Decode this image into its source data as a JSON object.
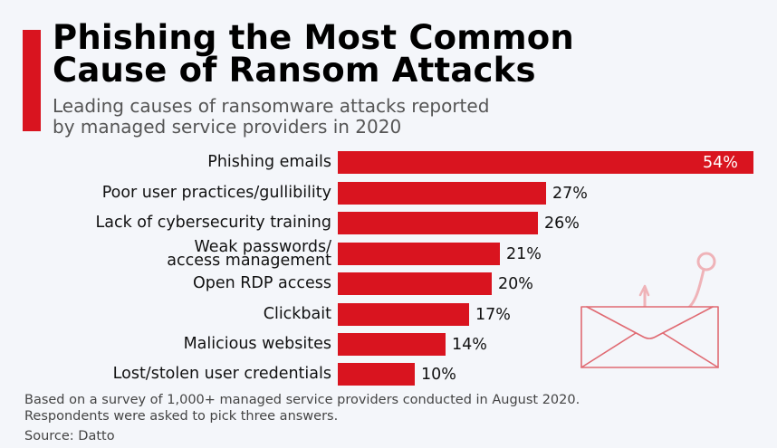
{
  "header": {
    "title_line1": "Phishing the Most Common",
    "title_line2": "Cause of Ransom Attacks",
    "subtitle_line1": "Leading causes of ransomware attacks reported",
    "subtitle_line2": "by managed service providers in 2020"
  },
  "colors": {
    "accent": "#d9141f",
    "background": "#f4f6fa",
    "illustration": "#e06a72"
  },
  "chart_data": {
    "type": "bar",
    "orientation": "horizontal",
    "title": "Phishing the Most Common Cause of Ransom Attacks",
    "subtitle": "Leading causes of ransomware attacks reported by managed service providers in 2020",
    "categories": [
      "Phishing emails",
      "Poor user practices/gullibility",
      "Lack of cybersecurity training",
      "Weak passwords/ access management",
      "Open RDP access",
      "Clickbait",
      "Malicious websites",
      "Lost/stolen user credentials"
    ],
    "values": [
      54,
      27,
      26,
      21,
      20,
      17,
      14,
      10
    ],
    "value_labels": [
      "54%",
      "27%",
      "26%",
      "21%",
      "20%",
      "17%",
      "14%",
      "10%"
    ],
    "unit": "%",
    "xlabel": "",
    "ylabel": "",
    "xlim": [
      0,
      54
    ],
    "grid": false,
    "legend": "none"
  },
  "rows": [
    {
      "label_line1": "Phishing emails",
      "label_line2": "",
      "value": "54%"
    },
    {
      "label_line1": "Poor user practices/gullibility",
      "label_line2": "",
      "value": "27%"
    },
    {
      "label_line1": "Lack of cybersecurity training",
      "label_line2": "",
      "value": "26%"
    },
    {
      "label_line1": "Weak passwords/",
      "label_line2": "access management",
      "value": "21%"
    },
    {
      "label_line1": "Open RDP access",
      "label_line2": "",
      "value": "20%"
    },
    {
      "label_line1": "Clickbait",
      "label_line2": "",
      "value": "17%"
    },
    {
      "label_line1": "Malicious websites",
      "label_line2": "",
      "value": "14%"
    },
    {
      "label_line1": "Lost/stolen user credentials",
      "label_line2": "",
      "value": "10%"
    }
  ],
  "footer": {
    "note_line1": "Based on a survey of 1,000+ managed service providers conducted in August 2020.",
    "note_line2": "Respondents were asked to pick three answers.",
    "source": "Source: Datto"
  },
  "illustration": {
    "icon": "phishing-hook-envelope-icon"
  }
}
